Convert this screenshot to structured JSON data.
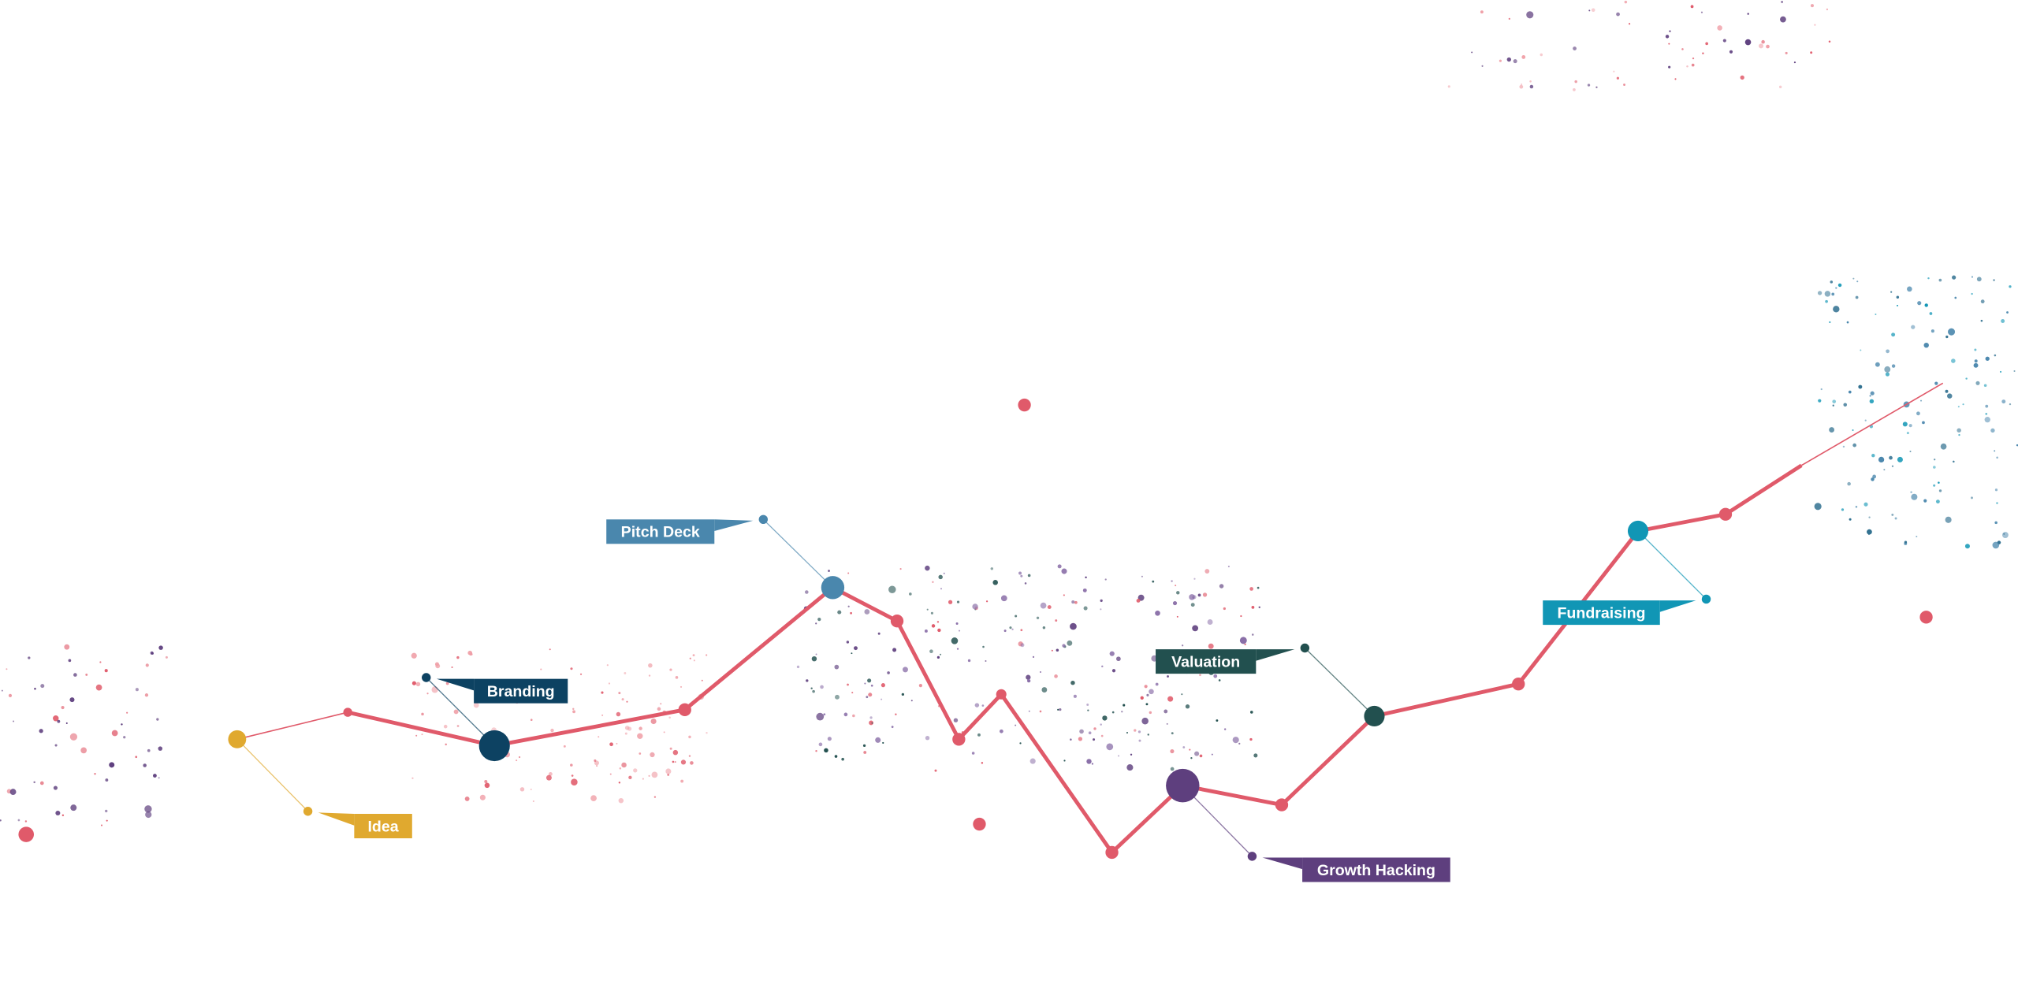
{
  "milestones": [
    {
      "label": "Idea"
    },
    {
      "label": "Branding"
    },
    {
      "label": "Pitch Deck"
    },
    {
      "label": "Growth Hacking"
    },
    {
      "label": "Valuation"
    },
    {
      "label": "Fundraising"
    }
  ]
}
